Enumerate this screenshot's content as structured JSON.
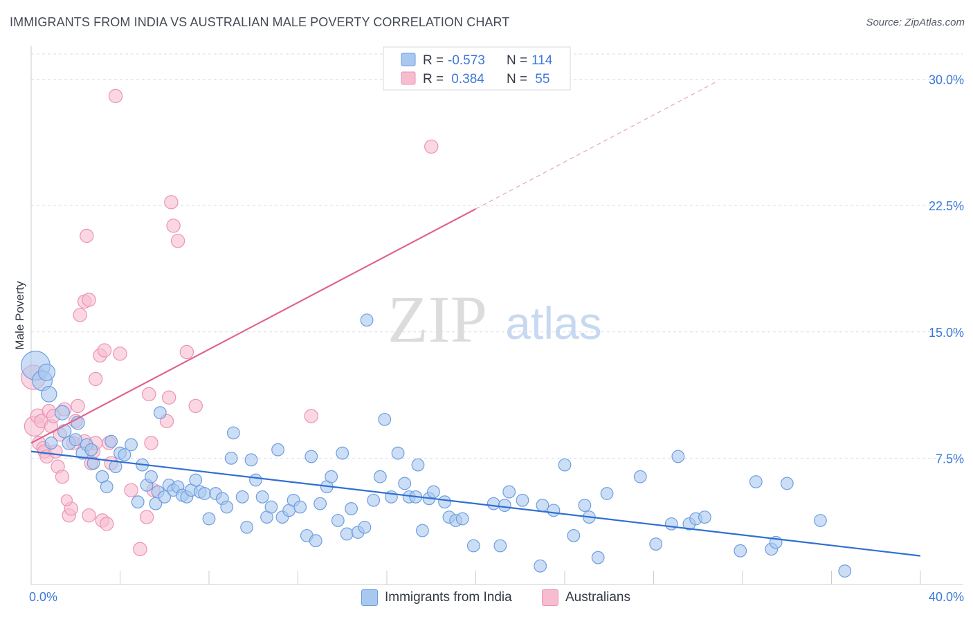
{
  "header": {
    "title": "IMMIGRANTS FROM INDIA VS AUSTRALIAN MALE POVERTY CORRELATION CHART",
    "source": "Source: ZipAtlas.com"
  },
  "watermark": {
    "zip": "ZIP",
    "atlas": "atlas"
  },
  "colors": {
    "blue_fill": "#a9c8ef",
    "blue_stroke": "#6d9ee0",
    "blue_line": "#2f6fd2",
    "pink_fill": "#f6bdd0",
    "pink_stroke": "#ec93b1",
    "pink_line": "#e0648f",
    "axis_text": "#3c78d8",
    "grid": "#d9dde3"
  },
  "legend": {
    "rows": [
      {
        "r_label": "R =",
        "r_value": "-0.573",
        "n_label": "N =",
        "n_value": "114"
      },
      {
        "r_label": "R =",
        "r_value": " 0.384",
        "n_label": "N =",
        "n_value": " 55"
      }
    ]
  },
  "bottom_legend": {
    "series1": "Immigrants from India",
    "series2": "Australians"
  },
  "chart_data": {
    "type": "scatter",
    "xlabel": "",
    "ylabel": "Male Poverty",
    "xlim": [
      0,
      40
    ],
    "ylim": [
      0,
      31.5
    ],
    "x_tick_labels": [
      "0.0%",
      "40.0%"
    ],
    "y_ticks": [
      7.5,
      15.0,
      22.5,
      30.0
    ],
    "y_tick_labels": [
      "7.5%",
      "15.0%",
      "22.5%",
      "30.0%"
    ],
    "grid": "horizontal dashed",
    "legend_position": "top-center",
    "series": [
      {
        "name": "Immigrants from India",
        "r": -0.573,
        "n": 114,
        "trend": {
          "x": [
            0,
            40
          ],
          "y": [
            7.9,
            1.7
          ],
          "dashed_after": null
        },
        "points": [
          [
            0.2,
            13.0,
            2.6
          ],
          [
            0.5,
            12.1,
            1.8
          ],
          [
            0.7,
            12.6,
            1.5
          ],
          [
            0.8,
            11.3,
            1.4
          ],
          [
            1.4,
            10.2,
            1.3
          ],
          [
            1.5,
            9.1,
            1.2
          ],
          [
            1.7,
            8.4,
            1.2
          ],
          [
            2.1,
            9.6,
            1.2
          ],
          [
            2.3,
            7.8,
            1.1
          ],
          [
            2.5,
            8.3,
            1.1
          ],
          [
            2.7,
            8.0,
            1.1
          ],
          [
            2.8,
            7.2,
            1.1
          ],
          [
            3.2,
            6.4,
            1.1
          ],
          [
            3.4,
            5.8,
            1.1
          ],
          [
            3.6,
            8.5,
            1.1
          ],
          [
            3.8,
            7.0,
            1.1
          ],
          [
            4.0,
            7.8,
            1.1
          ],
          [
            4.2,
            7.7,
            1.1
          ],
          [
            4.5,
            8.3,
            1.1
          ],
          [
            4.8,
            4.9,
            1.1
          ],
          [
            5.0,
            7.1,
            1.1
          ],
          [
            5.2,
            5.9,
            1.1
          ],
          [
            5.4,
            6.4,
            1.1
          ],
          [
            5.6,
            4.8,
            1.1
          ],
          [
            5.7,
            5.5,
            1.1
          ],
          [
            5.8,
            10.2,
            1.1
          ],
          [
            6.0,
            5.2,
            1.1
          ],
          [
            6.2,
            5.9,
            1.1
          ],
          [
            6.4,
            5.6,
            1.1
          ],
          [
            6.6,
            5.8,
            1.1
          ],
          [
            6.8,
            5.3,
            1.1
          ],
          [
            7.0,
            5.2,
            1.1
          ],
          [
            7.2,
            5.6,
            1.1
          ],
          [
            7.4,
            6.2,
            1.1
          ],
          [
            7.6,
            5.5,
            1.1
          ],
          [
            7.8,
            5.4,
            1.1
          ],
          [
            8.0,
            3.9,
            1.1
          ],
          [
            8.3,
            5.4,
            1.1
          ],
          [
            8.6,
            5.1,
            1.1
          ],
          [
            8.8,
            4.6,
            1.1
          ],
          [
            9.0,
            7.5,
            1.1
          ],
          [
            9.1,
            9.0,
            1.1
          ],
          [
            9.5,
            5.2,
            1.1
          ],
          [
            9.7,
            3.4,
            1.1
          ],
          [
            9.9,
            7.4,
            1.1
          ],
          [
            10.1,
            6.2,
            1.1
          ],
          [
            10.4,
            5.2,
            1.1
          ],
          [
            10.6,
            4.0,
            1.1
          ],
          [
            10.8,
            4.6,
            1.1
          ],
          [
            11.1,
            8.0,
            1.1
          ],
          [
            11.3,
            4.0,
            1.1
          ],
          [
            11.6,
            4.4,
            1.1
          ],
          [
            11.8,
            5.0,
            1.1
          ],
          [
            12.1,
            4.6,
            1.1
          ],
          [
            12.4,
            2.9,
            1.1
          ],
          [
            12.6,
            7.6,
            1.1
          ],
          [
            12.8,
            2.6,
            1.1
          ],
          [
            13.0,
            4.8,
            1.1
          ],
          [
            13.3,
            5.8,
            1.1
          ],
          [
            13.5,
            6.4,
            1.1
          ],
          [
            13.8,
            3.8,
            1.1
          ],
          [
            14.0,
            7.8,
            1.1
          ],
          [
            14.2,
            3.0,
            1.1
          ],
          [
            14.4,
            4.5,
            1.1
          ],
          [
            14.7,
            3.1,
            1.1
          ],
          [
            15.0,
            3.4,
            1.1
          ],
          [
            15.1,
            15.7,
            1.1
          ],
          [
            15.4,
            5.0,
            1.1
          ],
          [
            15.7,
            6.4,
            1.1
          ],
          [
            15.9,
            9.8,
            1.1
          ],
          [
            16.2,
            5.2,
            1.1
          ],
          [
            16.5,
            7.8,
            1.1
          ],
          [
            16.8,
            6.0,
            1.1
          ],
          [
            17.0,
            5.2,
            1.1
          ],
          [
            17.3,
            5.2,
            1.1
          ],
          [
            17.4,
            7.1,
            1.1
          ],
          [
            17.6,
            3.2,
            1.1
          ],
          [
            17.9,
            5.1,
            1.1
          ],
          [
            18.1,
            5.5,
            1.1
          ],
          [
            18.6,
            4.9,
            1.1
          ],
          [
            18.8,
            4.0,
            1.1
          ],
          [
            19.1,
            3.8,
            1.1
          ],
          [
            19.4,
            3.9,
            1.1
          ],
          [
            19.9,
            2.3,
            1.1
          ],
          [
            20.8,
            4.8,
            1.1
          ],
          [
            21.1,
            2.3,
            1.1
          ],
          [
            21.3,
            4.7,
            1.1
          ],
          [
            21.5,
            5.5,
            1.1
          ],
          [
            22.1,
            5.0,
            1.1
          ],
          [
            22.9,
            1.1,
            1.1
          ],
          [
            23.0,
            4.7,
            1.1
          ],
          [
            23.5,
            4.4,
            1.1
          ],
          [
            24.0,
            7.1,
            1.1
          ],
          [
            24.4,
            2.9,
            1.1
          ],
          [
            24.9,
            4.7,
            1.1
          ],
          [
            25.1,
            4.0,
            1.1
          ],
          [
            25.5,
            1.6,
            1.1
          ],
          [
            25.9,
            5.4,
            1.1
          ],
          [
            27.4,
            6.4,
            1.1
          ],
          [
            28.1,
            2.4,
            1.1
          ],
          [
            28.8,
            3.6,
            1.1
          ],
          [
            29.1,
            7.6,
            1.1
          ],
          [
            29.6,
            3.6,
            1.1
          ],
          [
            29.9,
            3.9,
            1.1
          ],
          [
            30.3,
            4.0,
            1.1
          ],
          [
            31.9,
            2.0,
            1.1
          ],
          [
            32.6,
            6.1,
            1.1
          ],
          [
            33.3,
            2.1,
            1.1
          ],
          [
            33.5,
            2.5,
            1.1
          ],
          [
            34.0,
            6.0,
            1.1
          ],
          [
            35.5,
            3.8,
            1.1
          ],
          [
            36.6,
            0.8,
            1.1
          ],
          [
            0.9,
            8.4,
            1.1
          ],
          [
            2.0,
            8.6,
            1.1
          ]
        ]
      },
      {
        "name": "Australians",
        "r": 0.384,
        "n": 55,
        "trend": {
          "x": [
            0,
            20
          ],
          "y": [
            8.4,
            22.3
          ],
          "dashed_to": [
            30.9,
            29.9
          ]
        },
        "points": [
          [
            0.1,
            12.3,
            2.2
          ],
          [
            0.15,
            9.4,
            1.8
          ],
          [
            0.3,
            10.0,
            1.3
          ],
          [
            0.35,
            8.4,
            1.2
          ],
          [
            0.45,
            9.7,
            1.2
          ],
          [
            0.55,
            8.1,
            1.2
          ],
          [
            0.6,
            7.9,
            1.2
          ],
          [
            0.7,
            7.6,
            1.2
          ],
          [
            0.8,
            10.3,
            1.2
          ],
          [
            0.9,
            9.4,
            1.2
          ],
          [
            1.0,
            10.0,
            1.2
          ],
          [
            1.1,
            7.9,
            1.2
          ],
          [
            1.2,
            7.0,
            1.2
          ],
          [
            1.3,
            8.9,
            1.2
          ],
          [
            1.4,
            6.4,
            1.2
          ],
          [
            1.5,
            10.4,
            1.2
          ],
          [
            1.7,
            4.1,
            1.2
          ],
          [
            1.8,
            4.5,
            1.2
          ],
          [
            1.9,
            8.4,
            1.2
          ],
          [
            2.0,
            9.7,
            1.2
          ],
          [
            2.1,
            10.6,
            1.2
          ],
          [
            2.2,
            16.0,
            1.2
          ],
          [
            2.4,
            8.5,
            1.2
          ],
          [
            2.4,
            16.8,
            1.2
          ],
          [
            2.5,
            20.7,
            1.2
          ],
          [
            2.6,
            4.1,
            1.2
          ],
          [
            2.6,
            16.9,
            1.2
          ],
          [
            2.7,
            7.2,
            1.2
          ],
          [
            2.8,
            7.9,
            1.2
          ],
          [
            2.9,
            12.2,
            1.2
          ],
          [
            2.9,
            8.4,
            1.2
          ],
          [
            3.1,
            13.6,
            1.2
          ],
          [
            3.2,
            3.8,
            1.2
          ],
          [
            3.3,
            13.9,
            1.2
          ],
          [
            3.4,
            3.6,
            1.2
          ],
          [
            3.5,
            8.4,
            1.2
          ],
          [
            3.6,
            7.2,
            1.2
          ],
          [
            3.8,
            29.0,
            1.2
          ],
          [
            4.0,
            13.7,
            1.2
          ],
          [
            4.5,
            5.6,
            1.2
          ],
          [
            4.9,
            2.1,
            1.2
          ],
          [
            5.2,
            4.0,
            1.2
          ],
          [
            5.3,
            11.3,
            1.2
          ],
          [
            5.4,
            8.4,
            1.2
          ],
          [
            5.5,
            5.6,
            1.2
          ],
          [
            6.1,
            9.7,
            1.2
          ],
          [
            6.2,
            11.1,
            1.2
          ],
          [
            6.3,
            22.7,
            1.2
          ],
          [
            6.4,
            21.3,
            1.2
          ],
          [
            6.6,
            20.4,
            1.2
          ],
          [
            7.0,
            13.8,
            1.2
          ],
          [
            7.4,
            10.6,
            1.2
          ],
          [
            12.6,
            10.0,
            1.2
          ],
          [
            18.0,
            26.0,
            1.2
          ],
          [
            1.6,
            5.0,
            1.0
          ]
        ]
      }
    ]
  }
}
